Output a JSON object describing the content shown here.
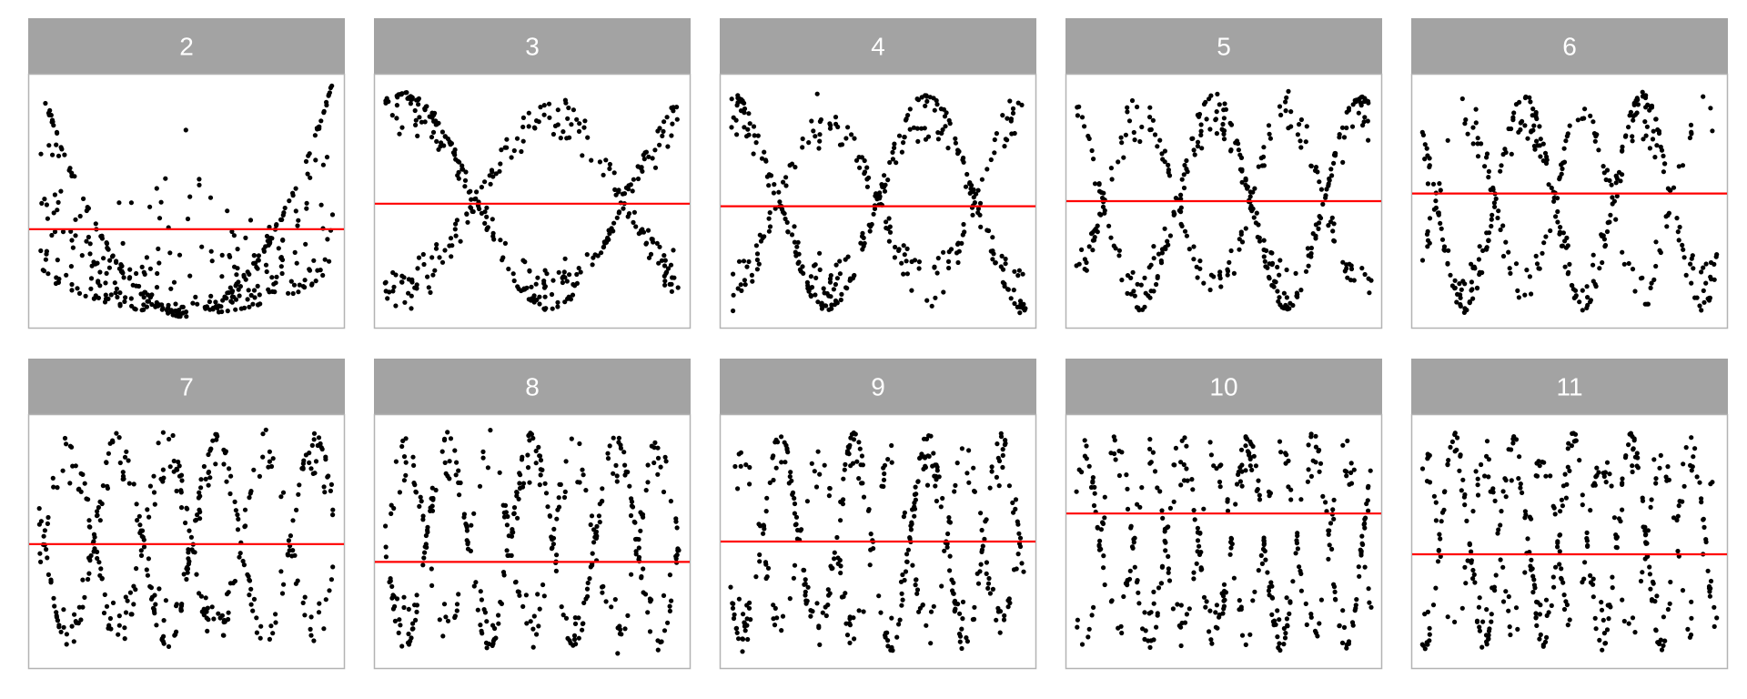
{
  "chart_data": {
    "type": "scatter",
    "layout": "facet-grid",
    "nrow": 2,
    "ncol": 5,
    "title": "",
    "xlabel": "",
    "ylabel": "",
    "axes_shown": false,
    "grid": false,
    "legend": "none",
    "colors": {
      "points": "#000000",
      "reference_line": "#ff0000",
      "strip_fill": "#a3a3a3",
      "strip_text": "#ffffff",
      "panel_border": "#b3b3b3",
      "panel_fill": "#ffffff"
    },
    "reference_line": {
      "orientation": "horizontal",
      "description": "red horizontal line per facet"
    },
    "points_per_facet": 400,
    "facets": [
      {
        "label": "2",
        "hline": 0.39
      },
      {
        "label": "3",
        "hline": 0.49
      },
      {
        "label": "4",
        "hline": 0.48
      },
      {
        "label": "5",
        "hline": 0.5
      },
      {
        "label": "6",
        "hline": 0.53
      },
      {
        "label": "7",
        "hline": 0.49
      },
      {
        "label": "8",
        "hline": 0.42
      },
      {
        "label": "9",
        "hline": 0.5
      },
      {
        "label": "10",
        "hline": 0.61
      },
      {
        "label": "11",
        "hline": 0.45
      }
    ]
  }
}
